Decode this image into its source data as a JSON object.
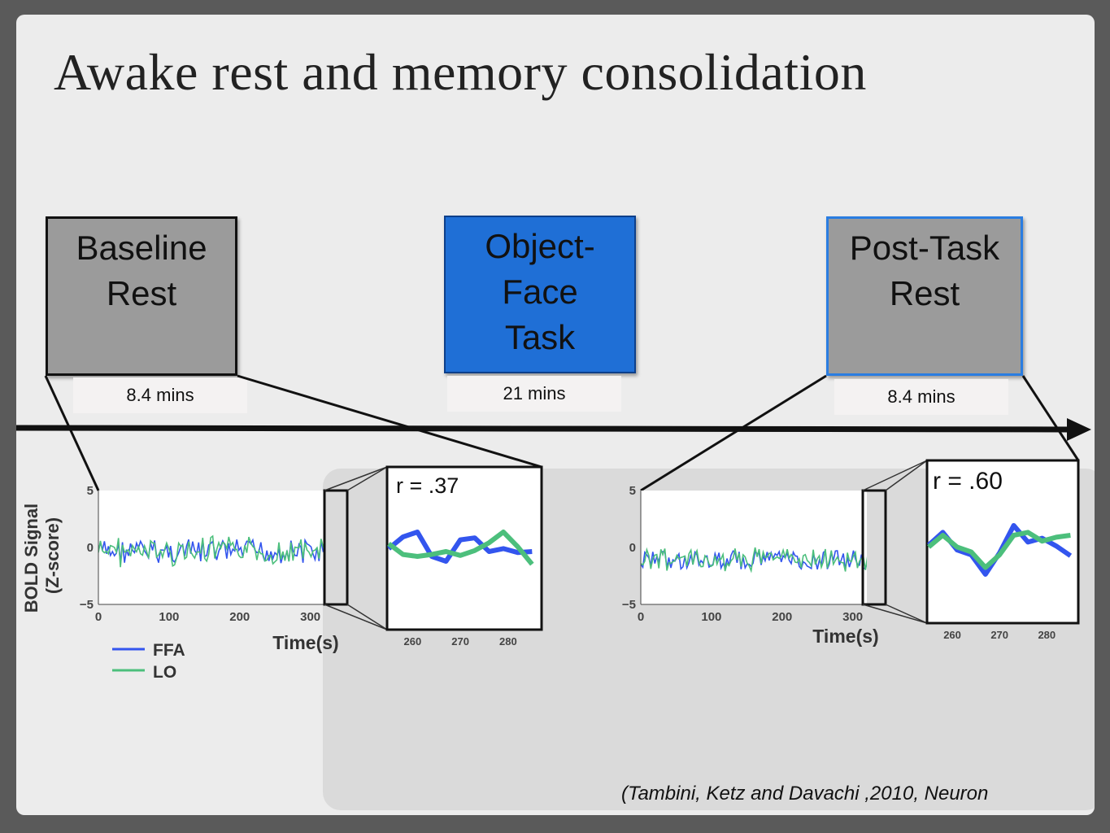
{
  "title": "Awake rest and memory consolidation",
  "boxes": {
    "baseline": {
      "line1": "Baseline",
      "line2": "Rest",
      "duration": "8.4 mins",
      "color": "#9b9b9b"
    },
    "task": {
      "line1": "Object-",
      "line2": "Face",
      "line3": "Task",
      "duration": "21 mins",
      "color": "#1f6fd6"
    },
    "post": {
      "line1": "Post-Task",
      "line2": "Rest",
      "duration": "8.4 mins",
      "color": "#9b9b9b"
    }
  },
  "citation": "(Tambini, Ketz and Davachi ,2010, Neuron",
  "colors": {
    "ffa": "#3355ee",
    "lo": "#4cbf7c",
    "accent_border": "#2a7de1"
  },
  "chart_data": [
    {
      "type": "line",
      "ylabel": "BOLD Signal\n(Z-score)",
      "xlabel": "Time(s)",
      "xlim": [
        0,
        320
      ],
      "ylim": [
        -5,
        5
      ],
      "xticks": [
        "0",
        "100",
        "200",
        "300"
      ],
      "yticks": [
        "5",
        "0",
        "−5"
      ],
      "series": [
        {
          "name": "FFA"
        },
        {
          "name": "LO"
        }
      ],
      "inset": {
        "label": "r = .37",
        "xlim": [
          255,
          287
        ],
        "xticks": [
          "260",
          "270",
          "280"
        ],
        "x": [
          255,
          258,
          261,
          264,
          267,
          270,
          273,
          276,
          279,
          282,
          285
        ],
        "ffa": [
          0.3,
          1.5,
          2.0,
          -0.5,
          -1.0,
          1.2,
          1.4,
          0.0,
          0.3,
          -0.1,
          0.0
        ],
        "lo": [
          0.8,
          -0.3,
          -0.5,
          -0.3,
          0.0,
          -0.4,
          0.1,
          0.9,
          2.0,
          0.5,
          -1.3
        ]
      }
    },
    {
      "type": "line",
      "xlabel": "Time(s)",
      "xlim": [
        0,
        320
      ],
      "ylim": [
        -5,
        5
      ],
      "xticks": [
        "0",
        "100",
        "200",
        "300"
      ],
      "yticks": [
        "5",
        "0",
        "−5"
      ],
      "series": [
        {
          "name": "FFA"
        },
        {
          "name": "LO"
        }
      ],
      "inset": {
        "label": "r = .60",
        "xlim": [
          255,
          287
        ],
        "xticks": [
          "260",
          "270",
          "280"
        ],
        "x": [
          255,
          258,
          261,
          264,
          267,
          270,
          273,
          276,
          279,
          282,
          285
        ],
        "ffa": [
          0.5,
          1.8,
          0.0,
          -0.5,
          -2.5,
          -0.3,
          2.5,
          0.8,
          1.2,
          0.4,
          -0.6
        ],
        "lo": [
          0.3,
          1.5,
          0.3,
          -0.2,
          -1.8,
          -0.5,
          1.5,
          1.8,
          0.9,
          1.3,
          1.5
        ]
      }
    }
  ]
}
